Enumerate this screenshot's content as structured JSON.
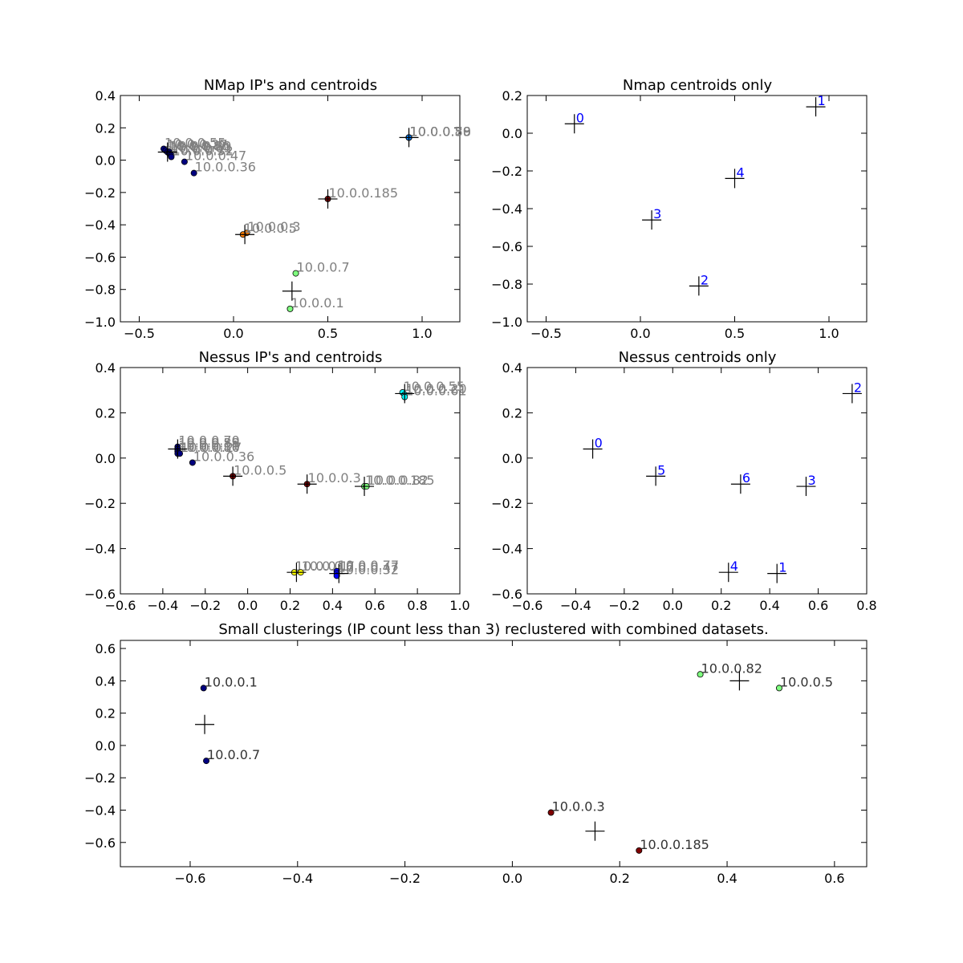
{
  "chart_data": [
    {
      "type": "scatter",
      "title": "NMap IP's and centroids",
      "xlim": [
        -0.6,
        1.2
      ],
      "ylim": [
        -1.0,
        0.4
      ],
      "xticks": [
        -0.5,
        0.0,
        0.5,
        1.0
      ],
      "yticks": [
        -1.0,
        -0.8,
        -0.6,
        -0.4,
        -0.2,
        0.0,
        0.2,
        0.4
      ],
      "xtick_labels": [
        "−0.5",
        "0.0",
        "0.5",
        "1.0"
      ],
      "ytick_labels": [
        "−1.0",
        "−0.8",
        "−0.6",
        "−0.4",
        "−0.2",
        "0.0",
        "0.2",
        "0.4"
      ],
      "label_color": "#808080",
      "points": [
        {
          "x": -0.37,
          "y": 0.07,
          "label": "10.0.0.55",
          "color": "#00007f"
        },
        {
          "x": -0.36,
          "y": 0.06,
          "label": "10.0.0.27",
          "color": "#00007f"
        },
        {
          "x": -0.35,
          "y": 0.05,
          "label": "10.0.0.86",
          "color": "#00007f"
        },
        {
          "x": -0.34,
          "y": 0.05,
          "label": "10.0.0.20",
          "color": "#00007f"
        },
        {
          "x": -0.34,
          "y": 0.04,
          "label": "10.0.0.61",
          "color": "#00007f"
        },
        {
          "x": -0.33,
          "y": 0.03,
          "label": "10.0.0.11",
          "color": "#00007f"
        },
        {
          "x": -0.33,
          "y": 0.02,
          "label": "10.0.0.32",
          "color": "#00007f"
        },
        {
          "x": -0.26,
          "y": -0.01,
          "label": "10.0.0.47",
          "color": "#00007f"
        },
        {
          "x": -0.21,
          "y": -0.08,
          "label": "10.0.0.36",
          "color": "#00007f"
        },
        {
          "x": 0.93,
          "y": 0.14,
          "label": "10.0.0.59",
          "color": "#0080ff"
        },
        {
          "x": 0.93,
          "y": 0.14,
          "label": "10.0.0.70",
          "color": "#0080ff"
        },
        {
          "x": 0.93,
          "y": 0.14,
          "label": "10.0.0.88",
          "color": "#0080ff"
        },
        {
          "x": 0.5,
          "y": -0.24,
          "label": "10.0.0.185",
          "color": "#7f0000"
        },
        {
          "x": 0.07,
          "y": -0.45,
          "label": "10.0.0.3",
          "color": "#ff8000"
        },
        {
          "x": 0.05,
          "y": -0.46,
          "label": "10.0.0.5",
          "color": "#ff8000"
        },
        {
          "x": 0.33,
          "y": -0.7,
          "label": "10.0.0.7",
          "color": "#7fff7f"
        },
        {
          "x": 0.3,
          "y": -0.92,
          "label": "10.0.0.1",
          "color": "#7fff7f"
        }
      ],
      "centroids": [
        {
          "x": -0.35,
          "y": 0.05
        },
        {
          "x": 0.93,
          "y": 0.14
        },
        {
          "x": 0.31,
          "y": -0.81
        },
        {
          "x": 0.06,
          "y": -0.46
        },
        {
          "x": 0.5,
          "y": -0.24
        }
      ]
    },
    {
      "type": "scatter",
      "title": "Nmap centroids only",
      "xlim": [
        -0.6,
        1.2
      ],
      "ylim": [
        -1.0,
        0.2
      ],
      "xticks": [
        -0.5,
        0.0,
        0.5,
        1.0
      ],
      "yticks": [
        -1.0,
        -0.8,
        -0.6,
        -0.4,
        -0.2,
        0.0,
        0.2
      ],
      "xtick_labels": [
        "−0.5",
        "0.0",
        "0.5",
        "1.0"
      ],
      "ytick_labels": [
        "−1.0",
        "−0.8",
        "−0.6",
        "−0.4",
        "−0.2",
        "0.0",
        "0.2"
      ],
      "label_color": "#0000ff",
      "points": [],
      "centroids": [
        {
          "x": -0.35,
          "y": 0.05,
          "label": "0"
        },
        {
          "x": 0.93,
          "y": 0.14,
          "label": "1"
        },
        {
          "x": 0.31,
          "y": -0.81,
          "label": "2"
        },
        {
          "x": 0.06,
          "y": -0.46,
          "label": "3"
        },
        {
          "x": 0.5,
          "y": -0.24,
          "label": "4"
        }
      ]
    },
    {
      "type": "scatter",
      "title": "Nessus IP's and centroids",
      "xlim": [
        -0.6,
        1.0
      ],
      "ylim": [
        -0.6,
        0.4
      ],
      "xticks": [
        -0.6,
        -0.4,
        -0.2,
        0.0,
        0.2,
        0.4,
        0.6,
        0.8,
        1.0
      ],
      "yticks": [
        -0.6,
        -0.4,
        -0.2,
        0.0,
        0.2,
        0.4
      ],
      "xtick_labels": [
        "−0.6",
        "−0.4",
        "−0.2",
        "0.0",
        "0.2",
        "0.4",
        "0.6",
        "0.8",
        "1.0"
      ],
      "ytick_labels": [
        "−0.6",
        "−0.4",
        "−0.2",
        "0.0",
        "0.2",
        "0.4"
      ],
      "label_color": "#808080",
      "points": [
        {
          "x": -0.33,
          "y": 0.05,
          "label": "10.0.0.70",
          "color": "#00007f"
        },
        {
          "x": -0.33,
          "y": 0.04,
          "label": "10.0.0.59",
          "color": "#00007f"
        },
        {
          "x": -0.33,
          "y": 0.04,
          "label": "10.0.0.88",
          "color": "#00007f"
        },
        {
          "x": -0.33,
          "y": 0.03,
          "label": "10.0.0.11",
          "color": "#00007f"
        },
        {
          "x": -0.33,
          "y": 0.02,
          "label": "10.0.0.86",
          "color": "#00007f"
        },
        {
          "x": -0.32,
          "y": 0.02,
          "label": "10.0.0.27",
          "color": "#00007f"
        },
        {
          "x": -0.26,
          "y": -0.02,
          "label": "10.0.0.36",
          "color": "#00007f"
        },
        {
          "x": 0.73,
          "y": 0.29,
          "label": "10.0.0.55",
          "color": "#00ffff"
        },
        {
          "x": 0.74,
          "y": 0.28,
          "label": "10.0.0.20",
          "color": "#00ffff"
        },
        {
          "x": 0.74,
          "y": 0.27,
          "label": "10.0.0.61",
          "color": "#00ffff"
        },
        {
          "x": -0.07,
          "y": -0.08,
          "label": "10.0.0.5",
          "color": "#7f0000"
        },
        {
          "x": 0.28,
          "y": -0.115,
          "label": "10.0.0.3",
          "color": "#7f0000"
        },
        {
          "x": 0.55,
          "y": -0.125,
          "label": "10.0.0.185",
          "color": "#7fff7f"
        },
        {
          "x": 0.56,
          "y": -0.125,
          "label": "10.0.0.82",
          "color": "#7fff7f"
        },
        {
          "x": 0.22,
          "y": -0.505,
          "label": "10.0.0.1",
          "color": "#ffff00"
        },
        {
          "x": 0.25,
          "y": -0.505,
          "label": "10.0.0.7",
          "color": "#ffff00"
        },
        {
          "x": 0.42,
          "y": -0.5,
          "label": "10.0.0.77",
          "color": "#0000ff"
        },
        {
          "x": 0.42,
          "y": -0.51,
          "label": "10.0.0.47",
          "color": "#0000ff"
        },
        {
          "x": 0.42,
          "y": -0.52,
          "label": "10.0.0.32",
          "color": "#0000ff"
        }
      ],
      "centroids": [
        {
          "x": -0.33,
          "y": 0.04
        },
        {
          "x": 0.43,
          "y": -0.51
        },
        {
          "x": 0.74,
          "y": 0.285
        },
        {
          "x": 0.55,
          "y": -0.125
        },
        {
          "x": 0.23,
          "y": -0.505
        },
        {
          "x": -0.07,
          "y": -0.08
        },
        {
          "x": 0.28,
          "y": -0.115
        }
      ]
    },
    {
      "type": "scatter",
      "title": "Nessus centroids only",
      "xlim": [
        -0.6,
        0.8
      ],
      "ylim": [
        -0.6,
        0.4
      ],
      "xticks": [
        -0.6,
        -0.4,
        -0.2,
        0.0,
        0.2,
        0.4,
        0.6,
        0.8
      ],
      "yticks": [
        -0.6,
        -0.4,
        -0.2,
        0.0,
        0.2,
        0.4
      ],
      "xtick_labels": [
        "−0.6",
        "−0.4",
        "−0.2",
        "0.0",
        "0.2",
        "0.4",
        "0.6",
        "0.8"
      ],
      "ytick_labels": [
        "−0.6",
        "−0.4",
        "−0.2",
        "0.0",
        "0.2",
        "0.4"
      ],
      "label_color": "#0000ff",
      "points": [],
      "centroids": [
        {
          "x": -0.33,
          "y": 0.04,
          "label": "0"
        },
        {
          "x": 0.43,
          "y": -0.51,
          "label": "1"
        },
        {
          "x": 0.74,
          "y": 0.285,
          "label": "2"
        },
        {
          "x": 0.55,
          "y": -0.125,
          "label": "3"
        },
        {
          "x": 0.23,
          "y": -0.505,
          "label": "4"
        },
        {
          "x": -0.07,
          "y": -0.08,
          "label": "5"
        },
        {
          "x": 0.28,
          "y": -0.115,
          "label": "6"
        }
      ]
    },
    {
      "type": "scatter",
      "title": "Small clusterings (IP count less than 3) reclustered with combined datasets.",
      "xlim": [
        -0.73,
        0.66
      ],
      "ylim": [
        -0.75,
        0.65
      ],
      "xticks": [
        -0.6,
        -0.4,
        -0.2,
        0.0,
        0.2,
        0.4,
        0.6
      ],
      "yticks": [
        -0.6,
        -0.4,
        -0.2,
        0.0,
        0.2,
        0.4,
        0.6
      ],
      "xtick_labels": [
        "−0.6",
        "−0.4",
        "−0.2",
        "0.0",
        "0.2",
        "0.4",
        "0.6"
      ],
      "ytick_labels": [
        "−0.6",
        "−0.4",
        "−0.2",
        "0.0",
        "0.2",
        "0.4",
        "0.6"
      ],
      "label_color": "#333333",
      "points": [
        {
          "x": -0.575,
          "y": 0.355,
          "label": "10.0.0.1",
          "color": "#00007f"
        },
        {
          "x": -0.57,
          "y": -0.095,
          "label": "10.0.0.7",
          "color": "#00007f"
        },
        {
          "x": 0.35,
          "y": 0.44,
          "label": "10.0.0.82",
          "color": "#7fff7f"
        },
        {
          "x": 0.497,
          "y": 0.355,
          "label": "10.0.0.5",
          "color": "#7fff7f"
        },
        {
          "x": 0.072,
          "y": -0.415,
          "label": "10.0.0.3",
          "color": "#7f0000"
        },
        {
          "x": 0.236,
          "y": -0.65,
          "label": "10.0.0.185",
          "color": "#7f0000"
        }
      ],
      "centroids": [
        {
          "x": -0.573,
          "y": 0.13
        },
        {
          "x": 0.423,
          "y": 0.4
        },
        {
          "x": 0.154,
          "y": -0.53
        }
      ]
    }
  ]
}
